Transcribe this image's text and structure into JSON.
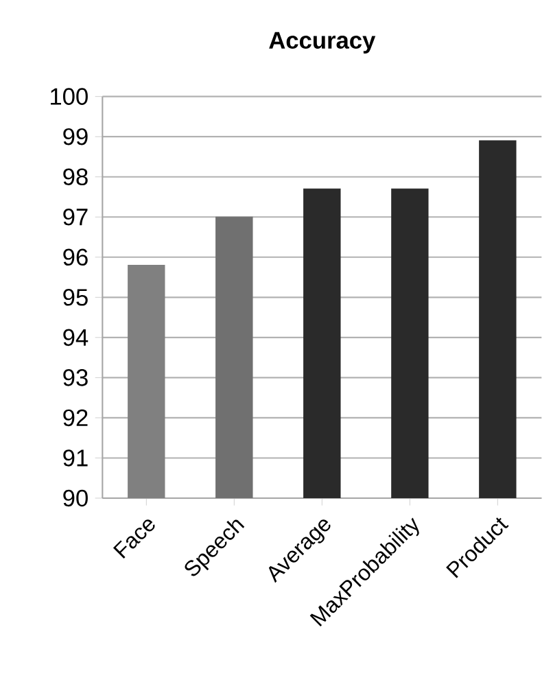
{
  "chart_data": {
    "type": "bar",
    "title": "Accuracy",
    "categories": [
      "Face",
      "Speech",
      "Average",
      "MaxProbability",
      "Product"
    ],
    "values": [
      95.8,
      97.0,
      97.7,
      97.7,
      98.9
    ],
    "colors": [
      "#808080",
      "#707070",
      "#2a2a2a",
      "#2a2a2a",
      "#2a2a2a"
    ],
    "ylim": [
      90,
      100
    ],
    "yticks": [
      90,
      91,
      92,
      93,
      94,
      95,
      96,
      97,
      98,
      99,
      100
    ],
    "grid": "y"
  }
}
